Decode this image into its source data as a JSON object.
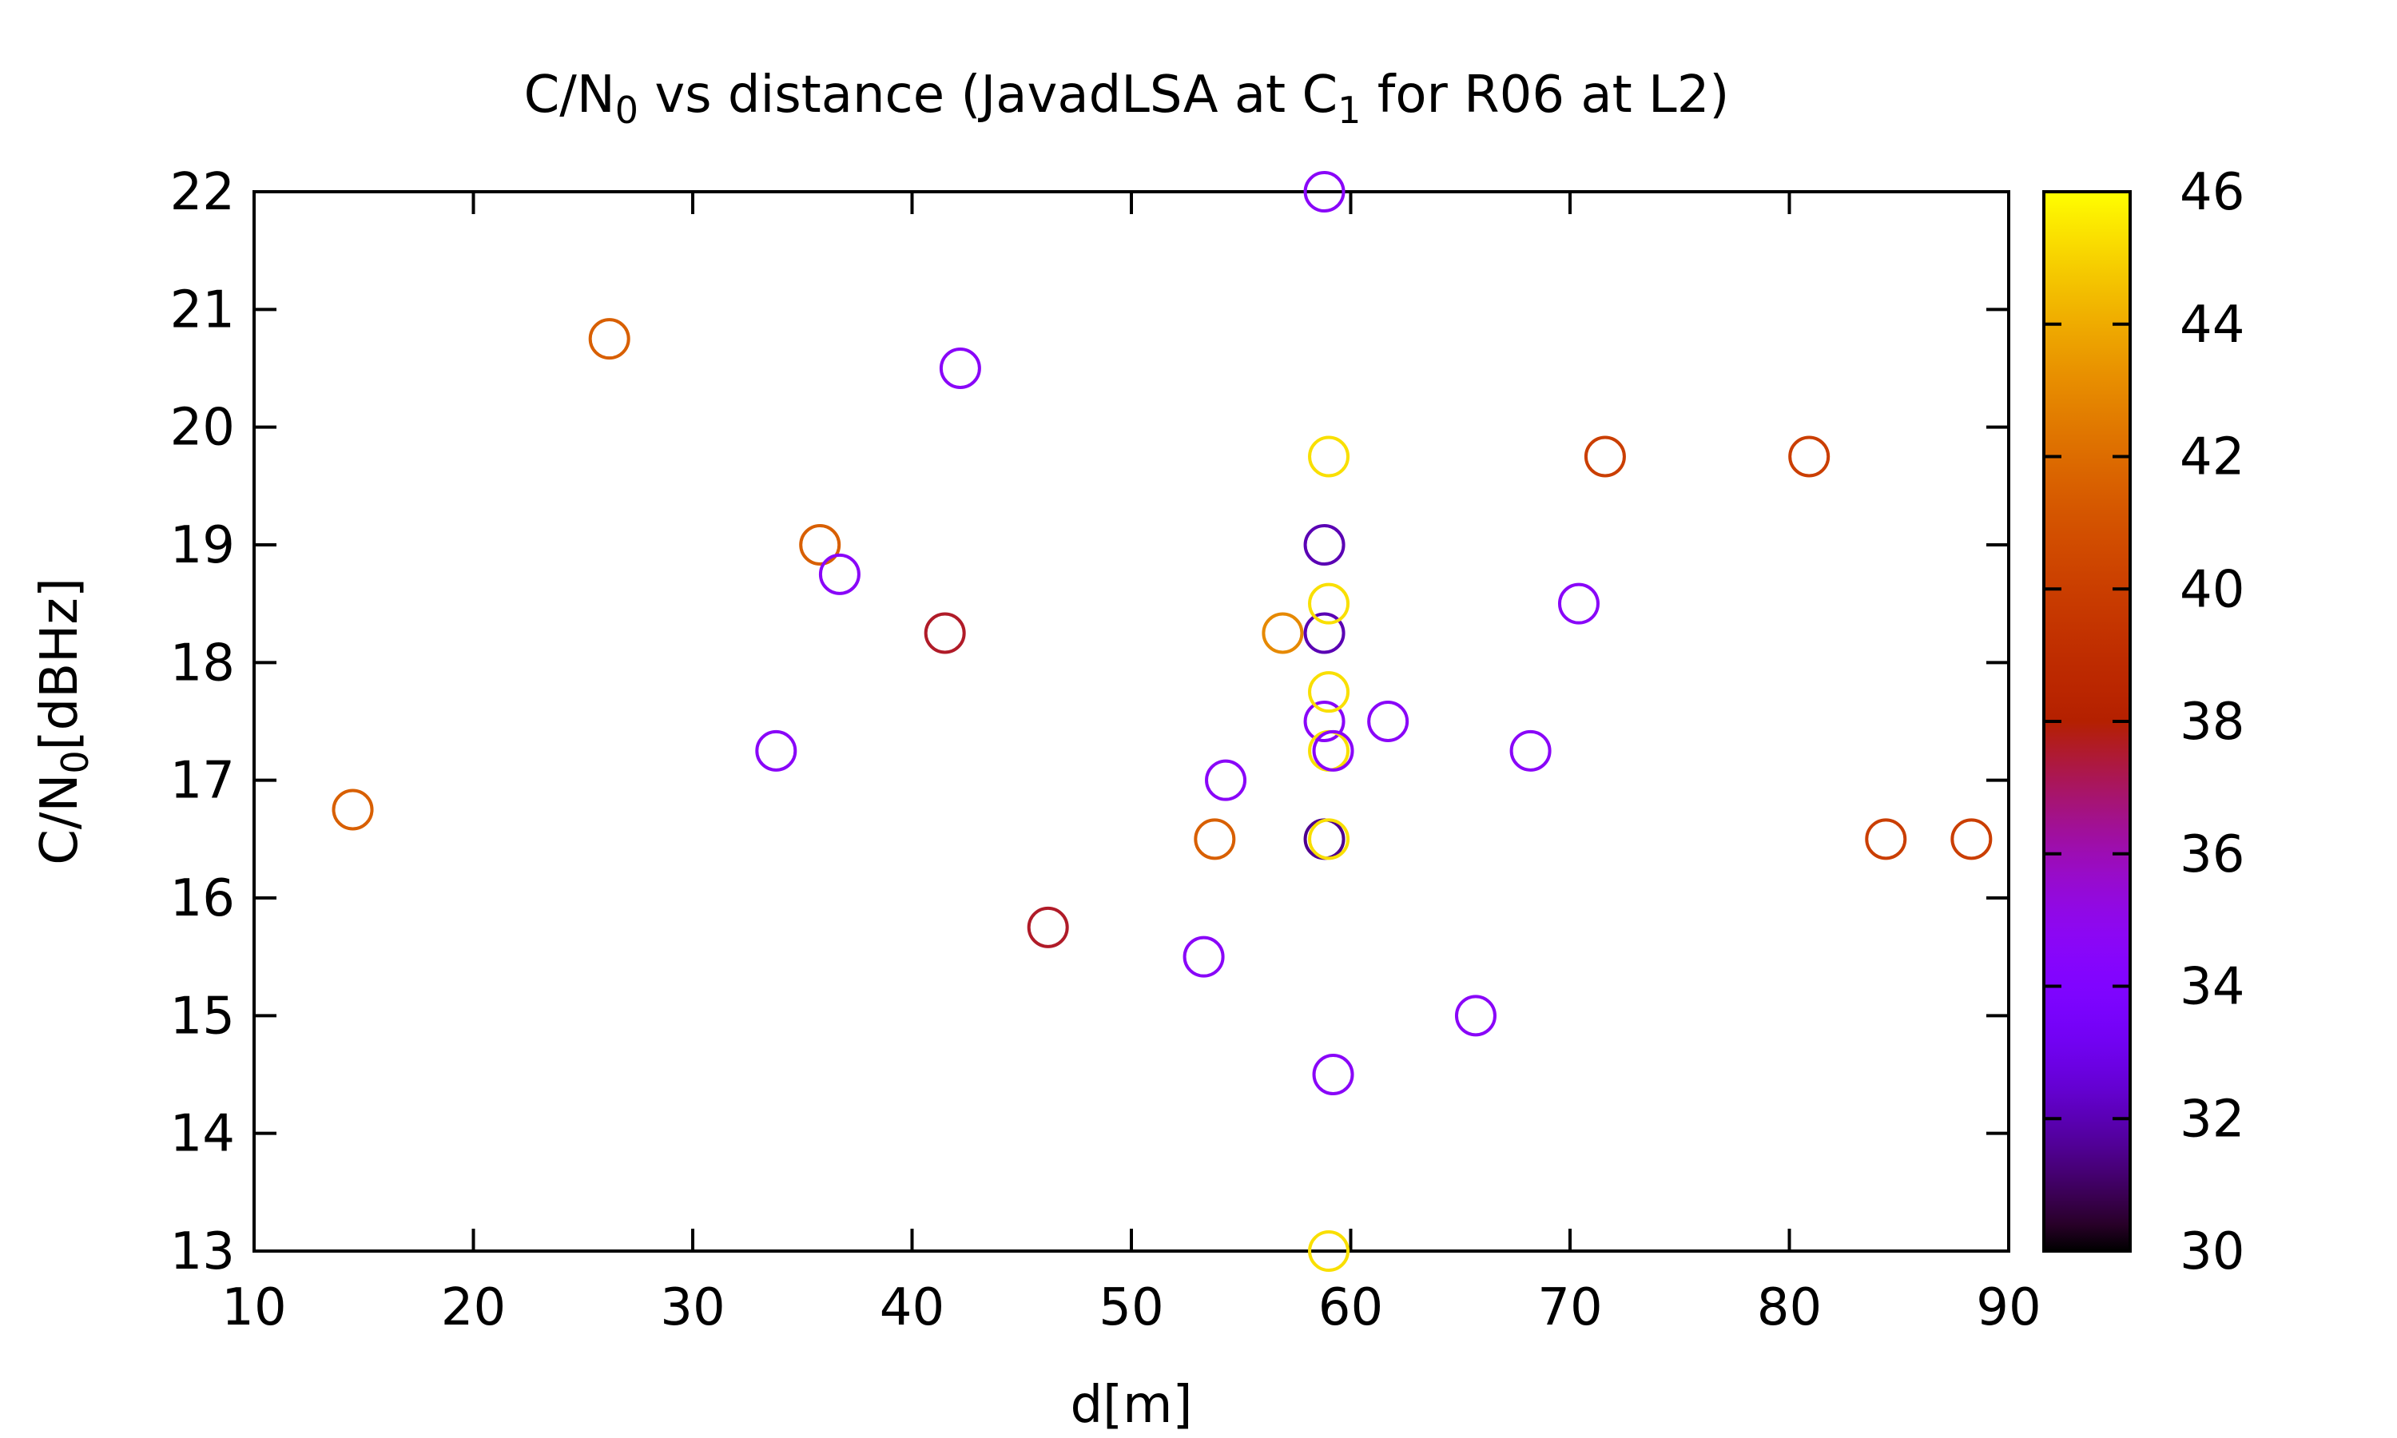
{
  "chart_data": {
    "type": "scatter",
    "title": {
      "pre": "C/N",
      "sub1": "0",
      "mid": " vs distance (JavadLSA at C",
      "sub2": "1",
      "post": " for R06 at L2)"
    },
    "xlabel": "d[m]",
    "ylabel": {
      "pre": "C/N",
      "sub": "0",
      "post": "[dBHz]"
    },
    "xlim": [
      10,
      90
    ],
    "ylim": [
      13,
      22
    ],
    "xticks": [
      10,
      20,
      30,
      40,
      50,
      60,
      70,
      80,
      90
    ],
    "yticks": [
      13,
      14,
      15,
      16,
      17,
      18,
      19,
      20,
      21,
      22
    ],
    "colorbar": {
      "range": [
        30,
        46
      ],
      "ticks": [
        30,
        32,
        34,
        36,
        38,
        40,
        42,
        44,
        46
      ],
      "palette": "gnuplot"
    },
    "grid": false,
    "points": [
      {
        "x": 14.5,
        "y": 16.75,
        "c": 41.5
      },
      {
        "x": 26.2,
        "y": 20.75,
        "c": 41.5
      },
      {
        "x": 33.8,
        "y": 17.25,
        "c": 34.6
      },
      {
        "x": 35.8,
        "y": 19.0,
        "c": 41.5
      },
      {
        "x": 36.7,
        "y": 18.75,
        "c": 34.6
      },
      {
        "x": 41.5,
        "y": 18.25,
        "c": 37.6
      },
      {
        "x": 42.2,
        "y": 20.5,
        "c": 34.6
      },
      {
        "x": 46.2,
        "y": 15.75,
        "c": 37.6
      },
      {
        "x": 53.3,
        "y": 15.5,
        "c": 34.6
      },
      {
        "x": 53.8,
        "y": 16.5,
        "c": 41.5
      },
      {
        "x": 54.3,
        "y": 17.0,
        "c": 34.6
      },
      {
        "x": 56.9,
        "y": 18.25,
        "c": 43.0
      },
      {
        "x": 58.8,
        "y": 22.0,
        "c": 34.6
      },
      {
        "x": 58.8,
        "y": 19.0,
        "c": 32.0
      },
      {
        "x": 58.8,
        "y": 18.25,
        "c": 32.0
      },
      {
        "x": 58.8,
        "y": 17.5,
        "c": 34.6
      },
      {
        "x": 58.8,
        "y": 16.5,
        "c": 31.5
      },
      {
        "x": 59.0,
        "y": 19.75,
        "c": 45.3
      },
      {
        "x": 59.0,
        "y": 18.5,
        "c": 45.3
      },
      {
        "x": 59.0,
        "y": 17.75,
        "c": 45.3
      },
      {
        "x": 59.0,
        "y": 17.25,
        "c": 45.3
      },
      {
        "x": 59.0,
        "y": 16.5,
        "c": 45.3
      },
      {
        "x": 59.0,
        "y": 13.0,
        "c": 45.3
      },
      {
        "x": 59.2,
        "y": 17.25,
        "c": 34.6
      },
      {
        "x": 59.2,
        "y": 14.5,
        "c": 34.6
      },
      {
        "x": 61.7,
        "y": 17.5,
        "c": 34.6
      },
      {
        "x": 65.7,
        "y": 15.0,
        "c": 34.6
      },
      {
        "x": 68.2,
        "y": 17.25,
        "c": 34.6
      },
      {
        "x": 70.4,
        "y": 18.5,
        "c": 34.6
      },
      {
        "x": 71.6,
        "y": 19.75,
        "c": 40.0
      },
      {
        "x": 80.9,
        "y": 19.75,
        "c": 40.0
      },
      {
        "x": 84.4,
        "y": 16.5,
        "c": 40.0
      },
      {
        "x": 88.3,
        "y": 16.5,
        "c": 40.0
      }
    ]
  }
}
